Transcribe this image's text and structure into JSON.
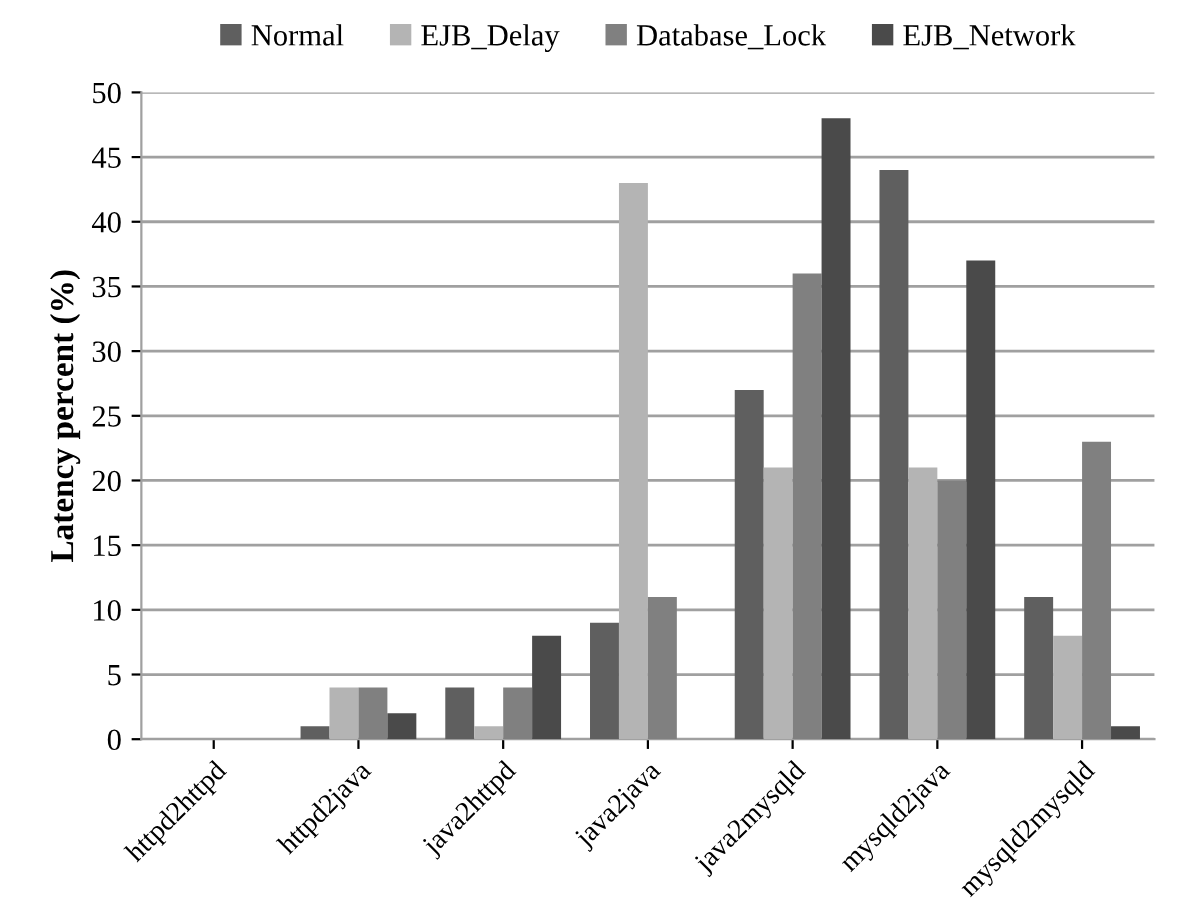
{
  "chart_data": {
    "type": "bar",
    "ylabel": "Latency percent (%)",
    "categories": [
      "httpd2httpd",
      "httpd2java",
      "java2httpd",
      "java2java",
      "java2mysqld",
      "mysqld2java",
      "mysqld2mysqld"
    ],
    "series": [
      {
        "name": "Normal",
        "color": "#5f5f5f",
        "values": [
          0,
          1,
          4,
          9,
          27,
          44,
          11
        ]
      },
      {
        "name": "EJB_Delay",
        "color": "#b4b4b4",
        "values": [
          0,
          4,
          1,
          43,
          21,
          21,
          8
        ]
      },
      {
        "name": "Database_Lock",
        "color": "#808080",
        "values": [
          0,
          4,
          4,
          11,
          36,
          20,
          23
        ]
      },
      {
        "name": "EJB_Network",
        "color": "#4a4a4a",
        "values": [
          0,
          2,
          8,
          0,
          48,
          37,
          1
        ]
      }
    ],
    "ylim": [
      0,
      50
    ],
    "yticks": [
      0,
      5,
      10,
      15,
      20,
      25,
      30,
      35,
      40,
      45,
      50
    ],
    "grid": "y",
    "legend": "top"
  }
}
